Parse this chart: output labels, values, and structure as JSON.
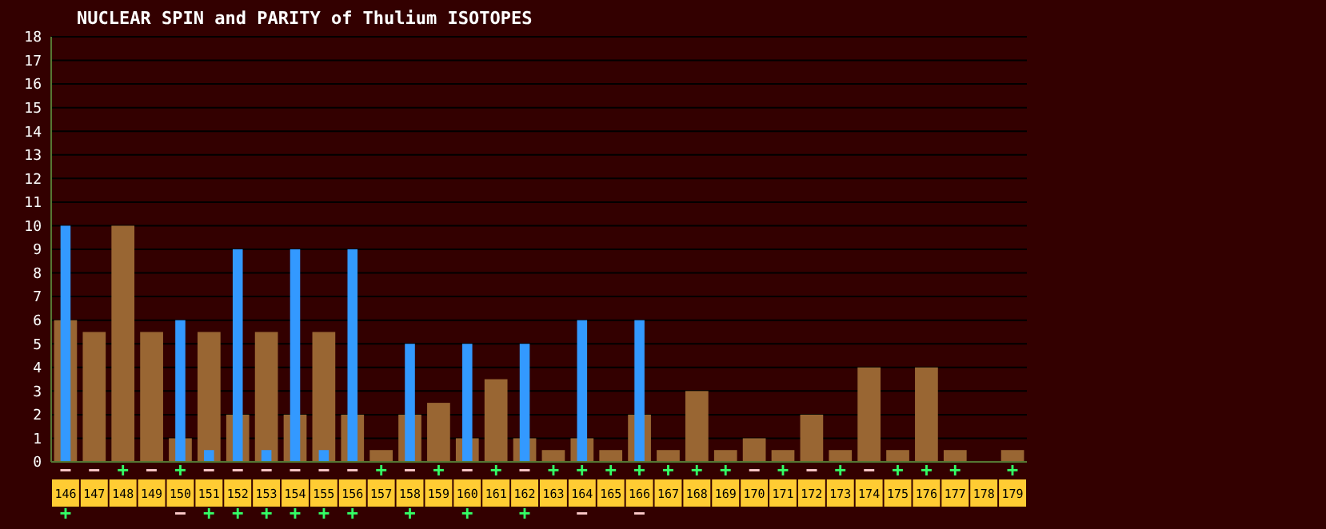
{
  "chart_data": {
    "type": "bar",
    "title": "NUCLEAR SPIN and PARITY of Thulium ISOTOPES",
    "categories": [
      "146",
      "147",
      "148",
      "149",
      "150",
      "151",
      "152",
      "153",
      "154",
      "155",
      "156",
      "157",
      "158",
      "159",
      "160",
      "161",
      "162",
      "163",
      "164",
      "165",
      "166",
      "167",
      "168",
      "169",
      "170",
      "171",
      "172",
      "173",
      "174",
      "175",
      "176",
      "177",
      "178",
      "179"
    ],
    "series": [
      {
        "color": "#996633",
        "values": [
          6,
          5.5,
          10,
          5.5,
          1,
          5.5,
          2,
          5.5,
          2,
          5.5,
          2,
          0.5,
          2,
          2.5,
          1,
          3.5,
          1,
          0.5,
          1,
          0.5,
          2,
          0.5,
          3,
          0.5,
          1,
          0.5,
          2,
          0.5,
          4,
          0.5,
          4,
          0.5,
          null,
          0.5
        ],
        "value_labels": [
          "−",
          "−",
          "+",
          "−",
          "+",
          "−",
          "−",
          "−",
          "−",
          "−",
          "−",
          "+",
          "−",
          "+",
          "−",
          "+",
          "−",
          "+",
          "+",
          "+",
          "+",
          "+",
          "+",
          "+",
          "−",
          "+",
          "−",
          "+",
          "−",
          "+",
          "+",
          "+",
          null,
          "+"
        ]
      },
      {
        "color": "#3399ff",
        "values": [
          10,
          null,
          null,
          null,
          6,
          0.5,
          9,
          0.5,
          9,
          0.5,
          9,
          null,
          5,
          null,
          5,
          null,
          5,
          null,
          6,
          null,
          6,
          null,
          null,
          null,
          null,
          null,
          null,
          null,
          null,
          null,
          null,
          null,
          null,
          null
        ],
        "value_labels": [
          "+",
          null,
          null,
          null,
          "−",
          "+",
          "+",
          "+",
          "+",
          "+",
          "+",
          null,
          "+",
          null,
          "+",
          null,
          "+",
          null,
          "−",
          null,
          "−",
          null,
          null,
          null,
          null,
          null,
          null,
          null,
          null,
          null,
          null,
          null,
          null,
          null
        ]
      }
    ],
    "ylim": [
      0,
      18
    ],
    "yticks": [
      0,
      1,
      2,
      3,
      4,
      5,
      6,
      7,
      8,
      9,
      10,
      11,
      12,
      13,
      14,
      15,
      16,
      17,
      18
    ],
    "grid": "y"
  }
}
